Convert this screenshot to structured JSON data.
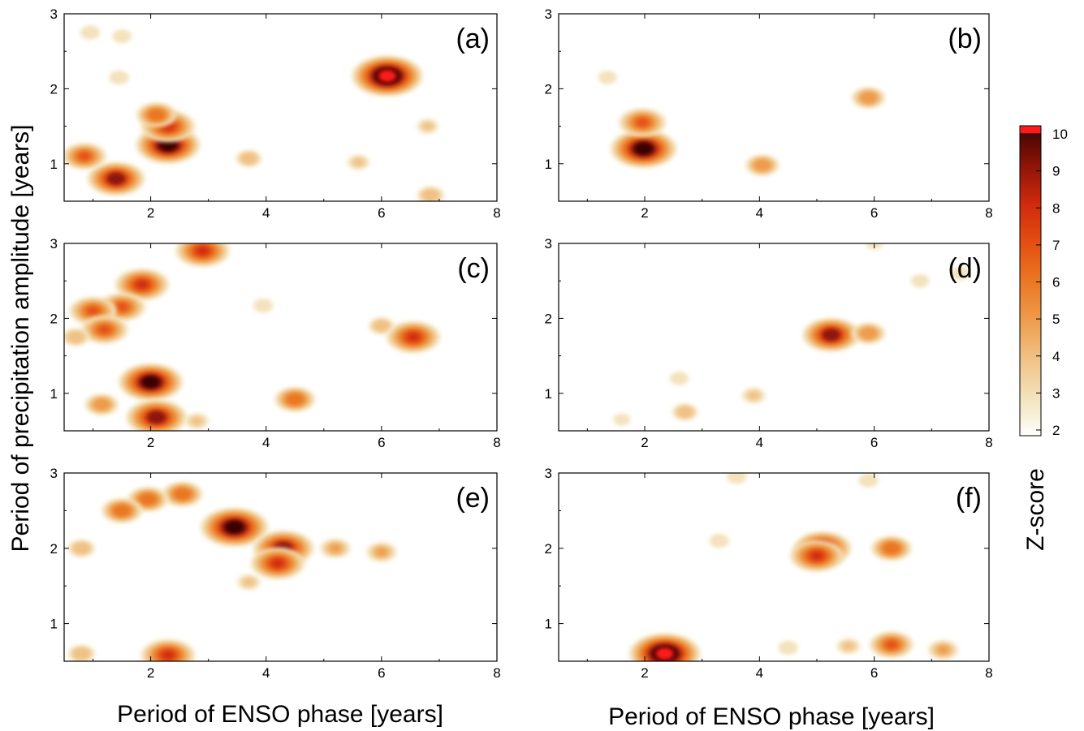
{
  "chart_data": {
    "type": "heatmap",
    "figure": {
      "ylabel": "Period of precipitation amplitude [years]",
      "xlabel_left": "Period of ENSO phase [years]",
      "xlabel_right": "Period of ENSO phase [years]",
      "colorbar": {
        "label": "Z-score",
        "range": [
          2,
          10
        ],
        "ticks": [
          "2",
          "3",
          "4",
          "5",
          "6",
          "7",
          "8",
          "9",
          "10"
        ],
        "stops": [
          {
            "z": 2,
            "color": "#ffffff"
          },
          {
            "z": 2.5,
            "color": "#f7f0d8"
          },
          {
            "z": 3,
            "color": "#f3e2bc"
          },
          {
            "z": 4,
            "color": "#f1c184"
          },
          {
            "z": 5,
            "color": "#ee9b4b"
          },
          {
            "z": 6,
            "color": "#ea7722"
          },
          {
            "z": 7,
            "color": "#e44e12"
          },
          {
            "z": 8,
            "color": "#ce2a0d"
          },
          {
            "z": 9,
            "color": "#8c1308"
          },
          {
            "z": 10,
            "color": "#3a0402"
          }
        ],
        "overflow_color": "#ff1a1a"
      }
    },
    "panels": [
      {
        "label": "(a)",
        "xlim": [
          0.5,
          8
        ],
        "ylim": [
          0.5,
          3
        ],
        "xticks": [
          "2",
          "4",
          "6",
          "8"
        ],
        "yticks": [
          "1",
          "2",
          "3"
        ],
        "blobs": [
          {
            "x": 6.1,
            "y": 2.17,
            "z": 10.5
          },
          {
            "x": 2.3,
            "y": 1.25,
            "z": 9.5
          },
          {
            "x": 2.3,
            "y": 1.5,
            "z": 8
          },
          {
            "x": 2.1,
            "y": 1.65,
            "z": 6
          },
          {
            "x": 1.4,
            "y": 0.8,
            "z": 8.5
          },
          {
            "x": 0.85,
            "y": 1.1,
            "z": 6.5
          },
          {
            "x": 3.7,
            "y": 1.07,
            "z": 3.8
          },
          {
            "x": 5.6,
            "y": 1.02,
            "z": 3.3
          },
          {
            "x": 6.8,
            "y": 1.5,
            "z": 3.2
          },
          {
            "x": 6.85,
            "y": 0.58,
            "z": 4
          },
          {
            "x": 0.95,
            "y": 2.75,
            "z": 3
          },
          {
            "x": 1.45,
            "y": 2.15,
            "z": 3
          },
          {
            "x": 1.5,
            "y": 2.7,
            "z": 2.9
          }
        ]
      },
      {
        "label": "(b)",
        "xlim": [
          0.5,
          8
        ],
        "ylim": [
          0.5,
          3
        ],
        "xticks": [
          "2",
          "4",
          "6",
          "8"
        ],
        "yticks": [
          "1",
          "2",
          "3"
        ],
        "blobs": [
          {
            "x": 5.9,
            "y": 1.88,
            "z": 5
          },
          {
            "x": 1.98,
            "y": 1.2,
            "z": 9.8
          },
          {
            "x": 1.96,
            "y": 1.55,
            "z": 7
          },
          {
            "x": 4.05,
            "y": 0.98,
            "z": 5
          },
          {
            "x": 1.35,
            "y": 2.15,
            "z": 2.8
          }
        ]
      },
      {
        "label": "(c)",
        "xlim": [
          0.5,
          8
        ],
        "ylim": [
          0.5,
          3
        ],
        "xticks": [
          "2",
          "4",
          "6",
          "8"
        ],
        "yticks": [
          "1",
          "2",
          "3"
        ],
        "blobs": [
          {
            "x": 6.0,
            "y": 1.9,
            "z": 3.8
          },
          {
            "x": 6.55,
            "y": 1.75,
            "z": 8
          },
          {
            "x": 2.0,
            "y": 1.15,
            "z": 9.5
          },
          {
            "x": 2.1,
            "y": 0.68,
            "z": 9
          },
          {
            "x": 4.5,
            "y": 0.92,
            "z": 6
          },
          {
            "x": 2.9,
            "y": 2.9,
            "z": 8
          },
          {
            "x": 1.85,
            "y": 2.45,
            "z": 8
          },
          {
            "x": 1.5,
            "y": 2.15,
            "z": 7
          },
          {
            "x": 1.0,
            "y": 2.1,
            "z": 7
          },
          {
            "x": 1.2,
            "y": 1.85,
            "z": 7
          },
          {
            "x": 0.7,
            "y": 1.75,
            "z": 4
          },
          {
            "x": 1.15,
            "y": 0.85,
            "z": 5
          },
          {
            "x": 3.95,
            "y": 2.17,
            "z": 3
          },
          {
            "x": 2.8,
            "y": 0.63,
            "z": 3.5
          }
        ]
      },
      {
        "label": "(d)",
        "xlim": [
          0.5,
          8
        ],
        "ylim": [
          0.5,
          3
        ],
        "xticks": [
          "2",
          "4",
          "6",
          "8"
        ],
        "yticks": [
          "1",
          "2",
          "3"
        ],
        "blobs": [
          {
            "x": 5.25,
            "y": 1.78,
            "z": 8.5
          },
          {
            "x": 5.9,
            "y": 1.8,
            "z": 5
          },
          {
            "x": 6.8,
            "y": 2.5,
            "z": 2.8
          },
          {
            "x": 7.5,
            "y": 2.6,
            "z": 2.8
          },
          {
            "x": 3.9,
            "y": 0.97,
            "z": 3.5
          },
          {
            "x": 2.7,
            "y": 0.75,
            "z": 3.8
          },
          {
            "x": 2.6,
            "y": 1.2,
            "z": 2.8
          },
          {
            "x": 6.0,
            "y": 3.0,
            "z": 2.6
          },
          {
            "x": 1.6,
            "y": 0.65,
            "z": 2.6
          }
        ]
      },
      {
        "label": "(e)",
        "xlim": [
          0.5,
          8
        ],
        "ylim": [
          0.5,
          3
        ],
        "xticks": [
          "2",
          "4",
          "6",
          "8"
        ],
        "yticks": [
          "1",
          "2",
          "3"
        ],
        "blobs": [
          {
            "x": 3.45,
            "y": 2.28,
            "z": 10
          },
          {
            "x": 4.3,
            "y": 2.0,
            "z": 9
          },
          {
            "x": 4.2,
            "y": 1.8,
            "z": 8
          },
          {
            "x": 5.2,
            "y": 2.0,
            "z": 4.5
          },
          {
            "x": 6.0,
            "y": 1.95,
            "z": 4.5
          },
          {
            "x": 2.3,
            "y": 0.58,
            "z": 8
          },
          {
            "x": 2.55,
            "y": 2.72,
            "z": 6
          },
          {
            "x": 1.95,
            "y": 2.65,
            "z": 6
          },
          {
            "x": 1.5,
            "y": 2.5,
            "z": 6
          },
          {
            "x": 0.8,
            "y": 2.0,
            "z": 4
          },
          {
            "x": 0.8,
            "y": 0.6,
            "z": 4
          },
          {
            "x": 3.7,
            "y": 1.55,
            "z": 3.5
          }
        ]
      },
      {
        "label": "(f)",
        "xlim": [
          0.5,
          8
        ],
        "ylim": [
          0.5,
          3
        ],
        "xticks": [
          "2",
          "4",
          "6",
          "8"
        ],
        "yticks": [
          "1",
          "2",
          "3"
        ],
        "blobs": [
          {
            "x": 5.1,
            "y": 2.0,
            "z": 8.5
          },
          {
            "x": 6.3,
            "y": 2.0,
            "z": 6
          },
          {
            "x": 5.0,
            "y": 1.9,
            "z": 8
          },
          {
            "x": 2.35,
            "y": 0.6,
            "z": 10.5
          },
          {
            "x": 6.3,
            "y": 0.72,
            "z": 6.5
          },
          {
            "x": 7.2,
            "y": 0.65,
            "z": 4.5
          },
          {
            "x": 5.55,
            "y": 0.7,
            "z": 3.5
          },
          {
            "x": 5.9,
            "y": 2.9,
            "z": 3
          },
          {
            "x": 3.3,
            "y": 2.1,
            "z": 3
          },
          {
            "x": 3.6,
            "y": 2.95,
            "z": 3
          },
          {
            "x": 4.5,
            "y": 0.68,
            "z": 3
          }
        ]
      }
    ]
  }
}
